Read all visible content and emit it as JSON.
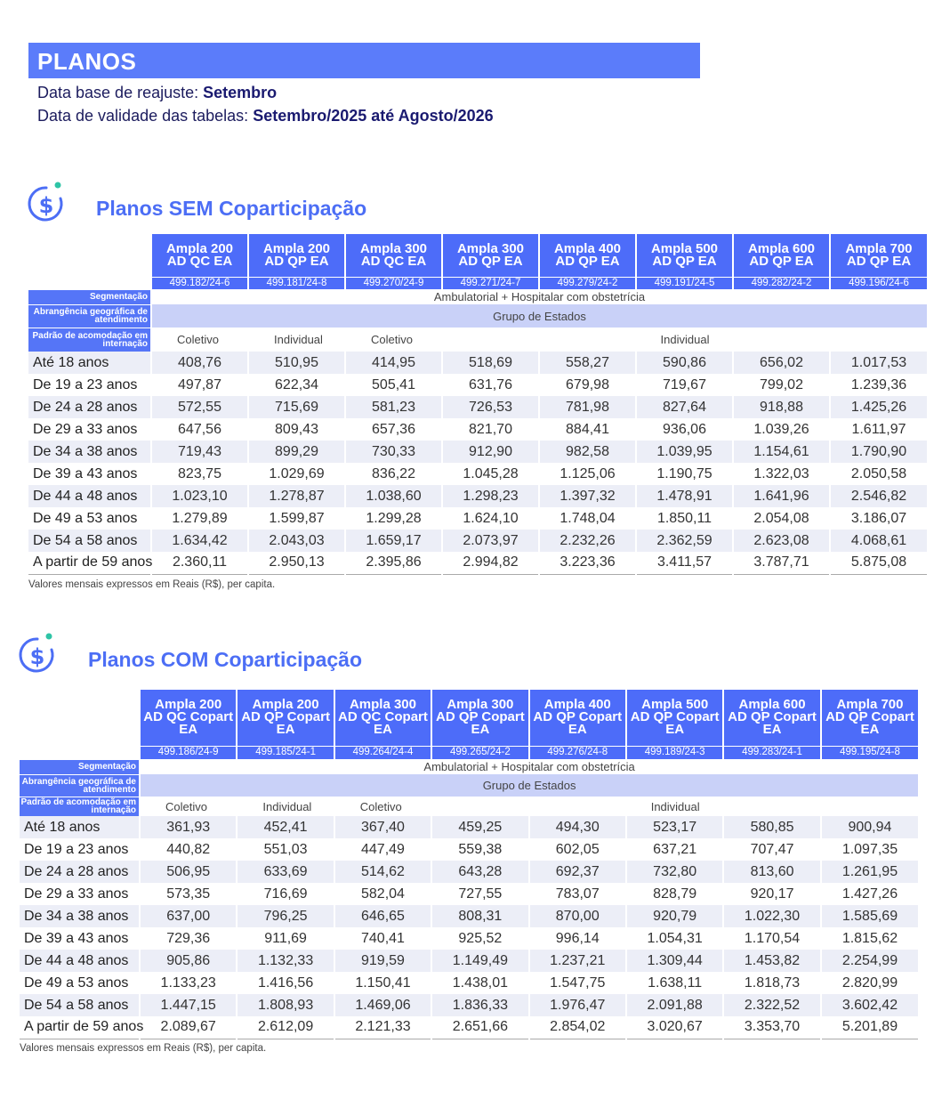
{
  "header": {
    "title": "PLANOS",
    "line1_label": "Data base de reajuste:",
    "line1_value": "Setembro",
    "line2_label": "Data de validade das tabelas:",
    "line2_value": "Setembro/2025 até Agosto/2026"
  },
  "sections": [
    {
      "title": "Planos SEM Coparticipação",
      "plans": [
        {
          "name": "Ampla 200",
          "variant": "AD QC EA",
          "code": "499.182/24-6"
        },
        {
          "name": "Ampla 200",
          "variant": "AD QP EA",
          "code": "499.181/24-8"
        },
        {
          "name": "Ampla 300",
          "variant": "AD QC EA",
          "code": "499.270/24-9"
        },
        {
          "name": "Ampla 300",
          "variant": "AD QP EA",
          "code": "499.271/24-7"
        },
        {
          "name": "Ampla 400",
          "variant": "AD QP EA",
          "code": "499.279/24-2"
        },
        {
          "name": "Ampla 500",
          "variant": "AD QP EA",
          "code": "499.191/24-5"
        },
        {
          "name": "Ampla 600",
          "variant": "AD QP EA",
          "code": "499.282/24-2"
        },
        {
          "name": "Ampla 700",
          "variant": "AD QP EA",
          "code": "499.196/24-6"
        }
      ],
      "segmentacao_label": "Segmentação",
      "segmentacao": "Ambulatorial + Hospitalar com obstetrícia",
      "abrangencia_label": "Abrangência geográfica de atendimento",
      "abrangencia": "Grupo de Estados",
      "padrao_label": "Padrão de acomodação em internação",
      "padrao": [
        "Coletivo",
        "Individual",
        "Coletivo",
        "Individual"
      ],
      "rows": [
        {
          "age": "Até 18 anos",
          "values": [
            "408,76",
            "510,95",
            "414,95",
            "518,69",
            "558,27",
            "590,86",
            "656,02",
            "1.017,53"
          ]
        },
        {
          "age": "De 19 a 23 anos",
          "values": [
            "497,87",
            "622,34",
            "505,41",
            "631,76",
            "679,98",
            "719,67",
            "799,02",
            "1.239,36"
          ]
        },
        {
          "age": "De 24 a 28 anos",
          "values": [
            "572,55",
            "715,69",
            "581,23",
            "726,53",
            "781,98",
            "827,64",
            "918,88",
            "1.425,26"
          ]
        },
        {
          "age": "De 29 a 33 anos",
          "values": [
            "647,56",
            "809,43",
            "657,36",
            "821,70",
            "884,41",
            "936,06",
            "1.039,26",
            "1.611,97"
          ]
        },
        {
          "age": "De 34 a 38 anos",
          "values": [
            "719,43",
            "899,29",
            "730,33",
            "912,90",
            "982,58",
            "1.039,95",
            "1.154,61",
            "1.790,90"
          ]
        },
        {
          "age": "De 39 a 43 anos",
          "values": [
            "823,75",
            "1.029,69",
            "836,22",
            "1.045,28",
            "1.125,06",
            "1.190,75",
            "1.322,03",
            "2.050,58"
          ]
        },
        {
          "age": "De 44 a 48 anos",
          "values": [
            "1.023,10",
            "1.278,87",
            "1.038,60",
            "1.298,23",
            "1.397,32",
            "1.478,91",
            "1.641,96",
            "2.546,82"
          ]
        },
        {
          "age": "De 49 a 53 anos",
          "values": [
            "1.279,89",
            "1.599,87",
            "1.299,28",
            "1.624,10",
            "1.748,04",
            "1.850,11",
            "2.054,08",
            "3.186,07"
          ]
        },
        {
          "age": "De 54 a 58 anos",
          "values": [
            "1.634,42",
            "2.043,03",
            "1.659,17",
            "2.073,97",
            "2.232,26",
            "2.362,59",
            "2.623,08",
            "4.068,61"
          ]
        },
        {
          "age": "A partir de 59 anos",
          "values": [
            "2.360,11",
            "2.950,13",
            "2.395,86",
            "2.994,82",
            "3.223,36",
            "3.411,57",
            "3.787,71",
            "5.875,08"
          ]
        }
      ],
      "note": "Valores mensais expressos em Reais (R$), per capita."
    },
    {
      "title": "Planos COM Coparticipação",
      "plans": [
        {
          "name": "Ampla 200",
          "variant": "AD QC Copart EA",
          "code": "499.186/24-9"
        },
        {
          "name": "Ampla 200",
          "variant": "AD QP Copart EA",
          "code": "499.185/24-1"
        },
        {
          "name": "Ampla 300",
          "variant": "AD QC Copart EA",
          "code": "499.264/24-4"
        },
        {
          "name": "Ampla 300",
          "variant": "AD QP Copart EA",
          "code": "499.265/24-2"
        },
        {
          "name": "Ampla 400",
          "variant": "AD QP Copart EA",
          "code": "499.276/24-8"
        },
        {
          "name": "Ampla 500",
          "variant": "AD QP Copart EA",
          "code": "499.189/24-3"
        },
        {
          "name": "Ampla 600",
          "variant": "AD QP Copart EA",
          "code": "499.283/24-1"
        },
        {
          "name": "Ampla 700",
          "variant": "AD QP Copart EA",
          "code": "499.195/24-8"
        }
      ],
      "segmentacao_label": "Segmentação",
      "segmentacao": "Ambulatorial + Hospitalar com obstetrícia",
      "abrangencia_label": "Abrangência geográfica de atendimento",
      "abrangencia": "Grupo de Estados",
      "padrao_label": "Padrão de acomodação em internação",
      "padrao": [
        "Coletivo",
        "Individual",
        "Coletivo",
        "Individual"
      ],
      "rows": [
        {
          "age": "Até 18 anos",
          "values": [
            "361,93",
            "452,41",
            "367,40",
            "459,25",
            "494,30",
            "523,17",
            "580,85",
            "900,94"
          ]
        },
        {
          "age": "De 19 a 23 anos",
          "values": [
            "440,82",
            "551,03",
            "447,49",
            "559,38",
            "602,05",
            "637,21",
            "707,47",
            "1.097,35"
          ]
        },
        {
          "age": "De 24 a 28 anos",
          "values": [
            "506,95",
            "633,69",
            "514,62",
            "643,28",
            "692,37",
            "732,80",
            "813,60",
            "1.261,95"
          ]
        },
        {
          "age": "De 29 a 33 anos",
          "values": [
            "573,35",
            "716,69",
            "582,04",
            "727,55",
            "783,07",
            "828,79",
            "920,17",
            "1.427,26"
          ]
        },
        {
          "age": "De 34 a 38 anos",
          "values": [
            "637,00",
            "796,25",
            "646,65",
            "808,31",
            "870,00",
            "920,79",
            "1.022,30",
            "1.585,69"
          ]
        },
        {
          "age": "De 39 a 43 anos",
          "values": [
            "729,36",
            "911,69",
            "740,41",
            "925,52",
            "996,14",
            "1.054,31",
            "1.170,54",
            "1.815,62"
          ]
        },
        {
          "age": "De 44 a 48 anos",
          "values": [
            "905,86",
            "1.132,33",
            "919,59",
            "1.149,49",
            "1.237,21",
            "1.309,44",
            "1.453,82",
            "2.254,99"
          ]
        },
        {
          "age": "De 49 a 53 anos",
          "values": [
            "1.133,23",
            "1.416,56",
            "1.150,41",
            "1.438,01",
            "1.547,75",
            "1.638,11",
            "1.818,73",
            "2.820,99"
          ]
        },
        {
          "age": "De 54 a 58 anos",
          "values": [
            "1.447,15",
            "1.808,93",
            "1.469,06",
            "1.836,33",
            "1.976,47",
            "2.091,88",
            "2.322,52",
            "3.602,42"
          ]
        },
        {
          "age": "A partir de 59 anos",
          "values": [
            "2.089,67",
            "2.612,09",
            "2.121,33",
            "2.651,66",
            "2.854,02",
            "3.020,67",
            "3.353,70",
            "5.201,89"
          ]
        }
      ],
      "note": "Valores mensais expressos em Reais (R$), per capita."
    }
  ]
}
